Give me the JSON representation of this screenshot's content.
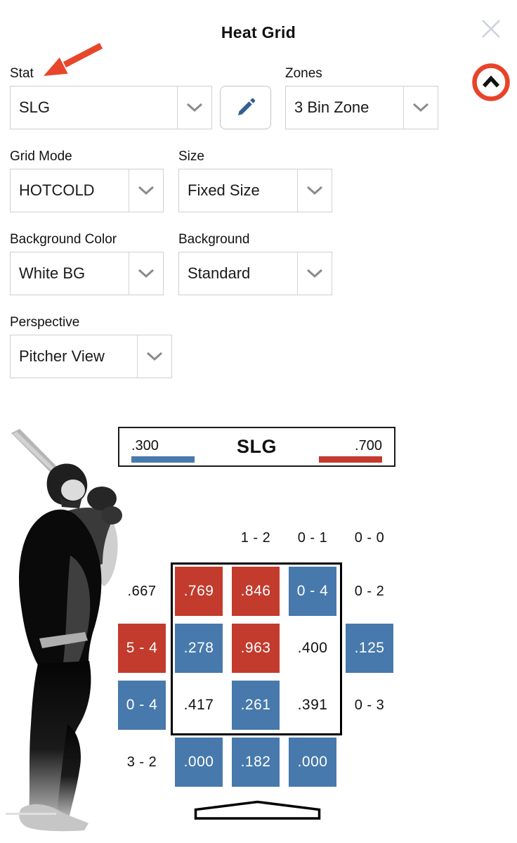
{
  "header": {
    "title": "Heat Grid"
  },
  "panel": {
    "fields": {
      "stat": {
        "label": "Stat",
        "value": "SLG"
      },
      "zones": {
        "label": "Zones",
        "value": "3 Bin Zone"
      },
      "grid_mode": {
        "label": "Grid Mode",
        "value": "HOTCOLD"
      },
      "size": {
        "label": "Size",
        "value": "Fixed Size"
      },
      "background_color": {
        "label": "Background Color",
        "value": "White BG"
      },
      "background": {
        "label": "Background",
        "value": "Standard"
      },
      "perspective": {
        "label": "Perspective",
        "value": "Pitcher View"
      }
    }
  },
  "legend": {
    "title": "SLG",
    "min_label": ".300",
    "max_label": ".700"
  },
  "colors": {
    "hot": "#c23b2d",
    "cold": "#4779ac",
    "annotation": "#e8462b",
    "close_icon": "#ccd2db",
    "dropdown_border": "#cfcfcf",
    "chevron": "#8a8a8a",
    "pencil": "#33608f"
  },
  "chart_data": {
    "type": "heatmap",
    "title": "SLG",
    "legend": {
      "min_label": ".300",
      "max_label": ".700",
      "min_color": "#4779ac",
      "max_color": "#c23b2d"
    },
    "grid": [
      [
        {
          "type": "empty",
          "text": ""
        },
        {
          "type": "empty",
          "text": ""
        },
        {
          "type": "label",
          "text": "1 - 2"
        },
        {
          "type": "label",
          "text": "0 - 1"
        },
        {
          "type": "label",
          "text": "0 - 0"
        }
      ],
      [
        {
          "type": "label",
          "text": ".667"
        },
        {
          "type": "hot",
          "text": ".769"
        },
        {
          "type": "hot",
          "text": ".846"
        },
        {
          "type": "cold",
          "text": "0 - 4"
        },
        {
          "type": "label",
          "text": "0 - 2"
        }
      ],
      [
        {
          "type": "hot",
          "text": "5 - 4"
        },
        {
          "type": "cold",
          "text": ".278"
        },
        {
          "type": "hot",
          "text": ".963"
        },
        {
          "type": "plain",
          "text": ".400"
        },
        {
          "type": "cold",
          "text": ".125"
        }
      ],
      [
        {
          "type": "cold",
          "text": "0 - 4"
        },
        {
          "type": "plain",
          "text": ".417"
        },
        {
          "type": "cold",
          "text": ".261"
        },
        {
          "type": "plain",
          "text": ".391"
        },
        {
          "type": "label",
          "text": "0 - 3"
        }
      ],
      [
        {
          "type": "label",
          "text": "3 - 2"
        },
        {
          "type": "cold",
          "text": ".000"
        },
        {
          "type": "cold",
          "text": ".182"
        },
        {
          "type": "cold",
          "text": ".000"
        },
        {
          "type": "empty",
          "text": ""
        }
      ]
    ]
  }
}
